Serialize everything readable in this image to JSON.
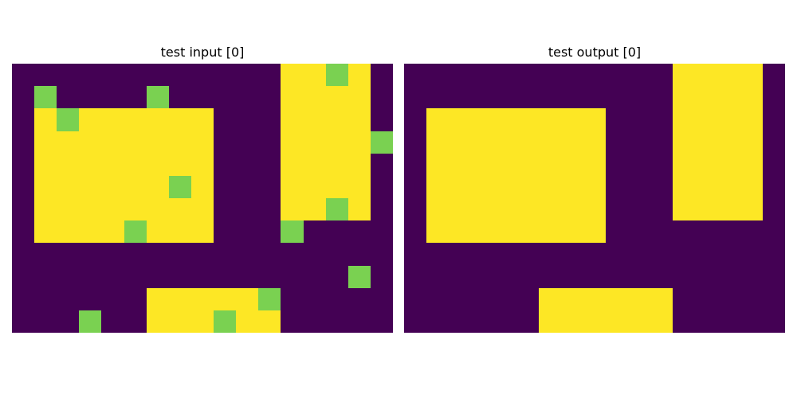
{
  "colors": {
    "0": "#440154",
    "1": "#7ad151",
    "2": "#fde725"
  },
  "panels": [
    {
      "title": "test input [0]",
      "grid": [
        [
          0,
          0,
          0,
          0,
          0,
          0,
          0,
          0,
          0,
          0,
          0,
          0,
          2,
          2,
          1,
          2,
          0
        ],
        [
          0,
          1,
          0,
          0,
          0,
          0,
          1,
          0,
          0,
          0,
          0,
          0,
          2,
          2,
          2,
          2,
          0
        ],
        [
          0,
          2,
          1,
          2,
          2,
          2,
          2,
          2,
          2,
          0,
          0,
          0,
          2,
          2,
          2,
          2,
          0
        ],
        [
          0,
          2,
          2,
          2,
          2,
          2,
          2,
          2,
          2,
          0,
          0,
          0,
          2,
          2,
          2,
          2,
          1
        ],
        [
          0,
          2,
          2,
          2,
          2,
          2,
          2,
          2,
          2,
          0,
          0,
          0,
          2,
          2,
          2,
          2,
          0
        ],
        [
          0,
          2,
          2,
          2,
          2,
          2,
          2,
          1,
          2,
          0,
          0,
          0,
          2,
          2,
          2,
          2,
          0
        ],
        [
          0,
          2,
          2,
          2,
          2,
          2,
          2,
          2,
          2,
          0,
          0,
          0,
          2,
          2,
          1,
          2,
          0
        ],
        [
          0,
          2,
          2,
          2,
          2,
          1,
          2,
          2,
          2,
          0,
          0,
          0,
          1,
          0,
          0,
          0,
          0
        ],
        [
          0,
          0,
          0,
          0,
          0,
          0,
          0,
          0,
          0,
          0,
          0,
          0,
          0,
          0,
          0,
          0,
          0
        ],
        [
          0,
          0,
          0,
          0,
          0,
          0,
          0,
          0,
          0,
          0,
          0,
          0,
          0,
          0,
          0,
          1,
          0
        ],
        [
          0,
          0,
          0,
          0,
          0,
          0,
          2,
          2,
          2,
          2,
          2,
          1,
          0,
          0,
          0,
          0,
          0
        ],
        [
          0,
          0,
          0,
          1,
          0,
          0,
          2,
          2,
          2,
          1,
          2,
          2,
          0,
          0,
          0,
          0,
          0
        ]
      ]
    },
    {
      "title": "test output [0]",
      "grid": [
        [
          0,
          0,
          0,
          0,
          0,
          0,
          0,
          0,
          0,
          0,
          0,
          0,
          2,
          2,
          2,
          2,
          0
        ],
        [
          0,
          0,
          0,
          0,
          0,
          0,
          0,
          0,
          0,
          0,
          0,
          0,
          2,
          2,
          2,
          2,
          0
        ],
        [
          0,
          2,
          2,
          2,
          2,
          2,
          2,
          2,
          2,
          0,
          0,
          0,
          2,
          2,
          2,
          2,
          0
        ],
        [
          0,
          2,
          2,
          2,
          2,
          2,
          2,
          2,
          2,
          0,
          0,
          0,
          2,
          2,
          2,
          2,
          0
        ],
        [
          0,
          2,
          2,
          2,
          2,
          2,
          2,
          2,
          2,
          0,
          0,
          0,
          2,
          2,
          2,
          2,
          0
        ],
        [
          0,
          2,
          2,
          2,
          2,
          2,
          2,
          2,
          2,
          0,
          0,
          0,
          2,
          2,
          2,
          2,
          0
        ],
        [
          0,
          2,
          2,
          2,
          2,
          2,
          2,
          2,
          2,
          0,
          0,
          0,
          2,
          2,
          2,
          2,
          0
        ],
        [
          0,
          2,
          2,
          2,
          2,
          2,
          2,
          2,
          2,
          0,
          0,
          0,
          0,
          0,
          0,
          0,
          0
        ],
        [
          0,
          0,
          0,
          0,
          0,
          0,
          0,
          0,
          0,
          0,
          0,
          0,
          0,
          0,
          0,
          0,
          0
        ],
        [
          0,
          0,
          0,
          0,
          0,
          0,
          0,
          0,
          0,
          0,
          0,
          0,
          0,
          0,
          0,
          0,
          0
        ],
        [
          0,
          0,
          0,
          0,
          0,
          0,
          2,
          2,
          2,
          2,
          2,
          2,
          0,
          0,
          0,
          0,
          0
        ],
        [
          0,
          0,
          0,
          0,
          0,
          0,
          2,
          2,
          2,
          2,
          2,
          2,
          0,
          0,
          0,
          0,
          0
        ]
      ]
    }
  ]
}
